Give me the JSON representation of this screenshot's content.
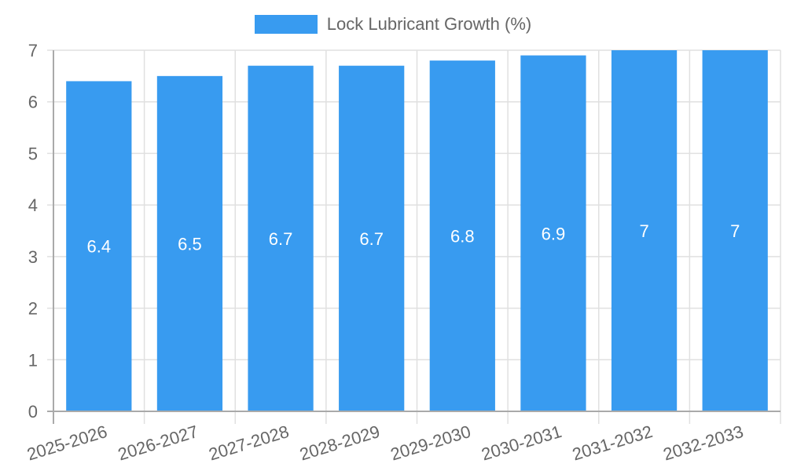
{
  "chart_data": {
    "type": "bar",
    "title": "",
    "categories": [
      "2025-2026",
      "2026-2027",
      "2027-2028",
      "2028-2029",
      "2029-2030",
      "2030-2031",
      "2031-2032",
      "2032-2033"
    ],
    "series": [
      {
        "name": "Lock Lubricant Growth (%)",
        "values": [
          6.4,
          6.5,
          6.7,
          6.7,
          6.8,
          6.9,
          7,
          7
        ],
        "color": "#389bf0"
      }
    ],
    "data_labels": [
      "6.4",
      "6.5",
      "6.7",
      "6.7",
      "6.8",
      "6.9",
      "7",
      "7"
    ],
    "xlabel": "",
    "ylabel": "",
    "ylim": [
      0,
      7
    ],
    "yticks": [
      0,
      1,
      2,
      3,
      4,
      5,
      6,
      7
    ],
    "grid": true,
    "legend_position": "top"
  },
  "legend": {
    "label": "Lock Lubricant Growth (%)",
    "color": "#389bf0"
  },
  "colors": {
    "bar": "#389bf0",
    "grid": "#e0e0e0",
    "axis": "#aaaaaa",
    "tick_text": "#666666",
    "data_label": "#ffffff"
  }
}
